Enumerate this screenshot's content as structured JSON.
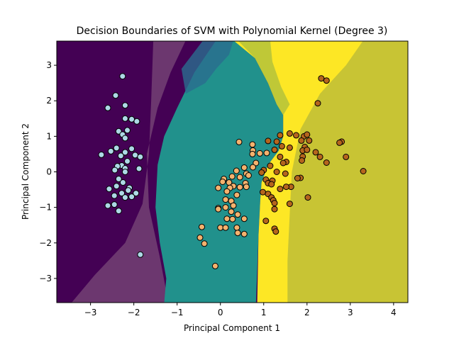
{
  "chart_data": {
    "type": "scatter",
    "title": "Decision Boundaries of SVM with Polynomial Kernel (Degree 3)",
    "xlabel": "Principal Component 1",
    "ylabel": "Principal Component 2",
    "xlim": [
      -3.78,
      4.33
    ],
    "ylim": [
      -3.68,
      3.68
    ],
    "xticks": [
      -3,
      -2,
      -1,
      0,
      1,
      2,
      3,
      4
    ],
    "yticks": [
      -3,
      -2,
      -1,
      0,
      1,
      2,
      3
    ],
    "grid": false,
    "legend": "none",
    "colors": {
      "region_class0": "#440154",
      "region_class1": "#21918c",
      "region_class2": "#fde725",
      "point_class0": "#add8e6",
      "point_class1": "#f4b26e",
      "point_class2": "#b5651d",
      "point_edge": "#000000"
    },
    "series": [
      {
        "class": 0,
        "points": [
          [
            -2.26,
            2.69
          ],
          [
            -2.42,
            2.15
          ],
          [
            -2.2,
            1.87
          ],
          [
            -2.6,
            1.8
          ],
          [
            -2.2,
            1.5
          ],
          [
            -2.05,
            1.48
          ],
          [
            -1.93,
            1.42
          ],
          [
            -2.35,
            1.14
          ],
          [
            -2.15,
            1.17
          ],
          [
            -2.26,
            1.05
          ],
          [
            -2.2,
            0.95
          ],
          [
            -2.05,
            0.65
          ],
          [
            -2.4,
            0.67
          ],
          [
            -2.2,
            0.55
          ],
          [
            -2.53,
            0.58
          ],
          [
            -1.97,
            0.47
          ],
          [
            -2.75,
            0.48
          ],
          [
            -2.3,
            0.45
          ],
          [
            -1.85,
            0.42
          ],
          [
            -2.15,
            0.3
          ],
          [
            -2.28,
            0.18
          ],
          [
            -2.38,
            0.16
          ],
          [
            -2.2,
            0.1
          ],
          [
            -2.44,
            0.05
          ],
          [
            -1.88,
            0.09
          ],
          [
            -2.2,
            0.0
          ],
          [
            -2.35,
            -0.2
          ],
          [
            -2.25,
            -0.3
          ],
          [
            -2.4,
            -0.4
          ],
          [
            -2.1,
            -0.45
          ],
          [
            -2.57,
            -0.48
          ],
          [
            -2.13,
            -0.52
          ],
          [
            -1.95,
            -0.6
          ],
          [
            -2.28,
            -0.6
          ],
          [
            -2.45,
            -0.67
          ],
          [
            -2.2,
            -0.72
          ],
          [
            -2.05,
            -0.7
          ],
          [
            -2.6,
            -0.95
          ],
          [
            -2.45,
            -0.92
          ],
          [
            -2.35,
            -1.1
          ],
          [
            -1.85,
            -2.33
          ]
        ]
      },
      {
        "class": 1,
        "points": [
          [
            0.43,
            0.84
          ],
          [
            0.74,
            0.77
          ],
          [
            0.75,
            0.6
          ],
          [
            0.91,
            0.52
          ],
          [
            0.74,
            0.5
          ],
          [
            1.07,
            0.53
          ],
          [
            0.82,
            0.25
          ],
          [
            0.75,
            0.13
          ],
          [
            0.55,
            0.12
          ],
          [
            0.37,
            0.03
          ],
          [
            0.6,
            -0.05
          ],
          [
            0.65,
            -0.1
          ],
          [
            0.45,
            -0.15
          ],
          [
            0.27,
            -0.13
          ],
          [
            0.08,
            -0.2
          ],
          [
            0.05,
            -0.28
          ],
          [
            0.2,
            -0.3
          ],
          [
            0.58,
            -0.32
          ],
          [
            0.3,
            -0.4
          ],
          [
            0.45,
            -0.43
          ],
          [
            0.6,
            -0.42
          ],
          [
            0.22,
            -0.45
          ],
          [
            -0.05,
            -0.45
          ],
          [
            0.15,
            -0.55
          ],
          [
            0.38,
            -0.65
          ],
          [
            0.12,
            -0.78
          ],
          [
            0.25,
            -0.82
          ],
          [
            0.3,
            -0.95
          ],
          [
            0.12,
            -1.0
          ],
          [
            -0.05,
            -1.02
          ],
          [
            -0.05,
            -1.05
          ],
          [
            0.25,
            -1.12
          ],
          [
            0.4,
            -1.2
          ],
          [
            0.15,
            -1.32
          ],
          [
            0.28,
            -1.33
          ],
          [
            0.55,
            -1.32
          ],
          [
            0.0,
            -1.57
          ],
          [
            -0.43,
            -1.55
          ],
          [
            0.12,
            -1.57
          ],
          [
            0.38,
            -1.57
          ],
          [
            0.4,
            -1.72
          ],
          [
            0.55,
            -1.75
          ],
          [
            -0.47,
            -1.85
          ],
          [
            -0.37,
            -2.02
          ],
          [
            -0.12,
            -2.65
          ]
        ]
      },
      {
        "class": 2,
        "points": [
          [
            2.33,
            2.63
          ],
          [
            2.45,
            2.57
          ],
          [
            2.25,
            1.93
          ],
          [
            1.38,
            1.03
          ],
          [
            1.6,
            1.08
          ],
          [
            1.75,
            1.03
          ],
          [
            1.93,
            1.0
          ],
          [
            2.0,
            1.05
          ],
          [
            2.05,
            0.88
          ],
          [
            1.87,
            0.88
          ],
          [
            1.3,
            0.85
          ],
          [
            1.1,
            0.87
          ],
          [
            2.8,
            0.85
          ],
          [
            2.75,
            0.82
          ],
          [
            1.42,
            0.72
          ],
          [
            1.95,
            0.7
          ],
          [
            1.9,
            0.6
          ],
          [
            1.6,
            0.68
          ],
          [
            2.0,
            0.62
          ],
          [
            1.25,
            0.62
          ],
          [
            2.2,
            0.55
          ],
          [
            2.3,
            0.42
          ],
          [
            1.9,
            0.43
          ],
          [
            2.9,
            0.42
          ],
          [
            1.38,
            0.42
          ],
          [
            1.88,
            0.32
          ],
          [
            1.52,
            0.28
          ],
          [
            1.45,
            0.25
          ],
          [
            2.45,
            0.26
          ],
          [
            1.15,
            0.17
          ],
          [
            1.0,
            0.05
          ],
          [
            1.3,
            0.0
          ],
          [
            0.95,
            -0.02
          ],
          [
            3.3,
            0.02
          ],
          [
            1.5,
            -0.05
          ],
          [
            1.85,
            -0.17
          ],
          [
            1.78,
            -0.18
          ],
          [
            1.05,
            -0.22
          ],
          [
            1.2,
            -0.25
          ],
          [
            1.1,
            -0.32
          ],
          [
            1.18,
            -0.35
          ],
          [
            1.63,
            -0.42
          ],
          [
            1.52,
            -0.42
          ],
          [
            1.38,
            -0.48
          ],
          [
            0.98,
            -0.57
          ],
          [
            1.1,
            -0.62
          ],
          [
            1.18,
            -0.72
          ],
          [
            2.02,
            -0.72
          ],
          [
            1.22,
            -0.8
          ],
          [
            1.25,
            -0.88
          ],
          [
            1.6,
            -0.9
          ],
          [
            1.25,
            -1.05
          ],
          [
            1.05,
            -1.38
          ],
          [
            1.25,
            -1.6
          ],
          [
            1.28,
            -1.68
          ]
        ]
      }
    ]
  }
}
